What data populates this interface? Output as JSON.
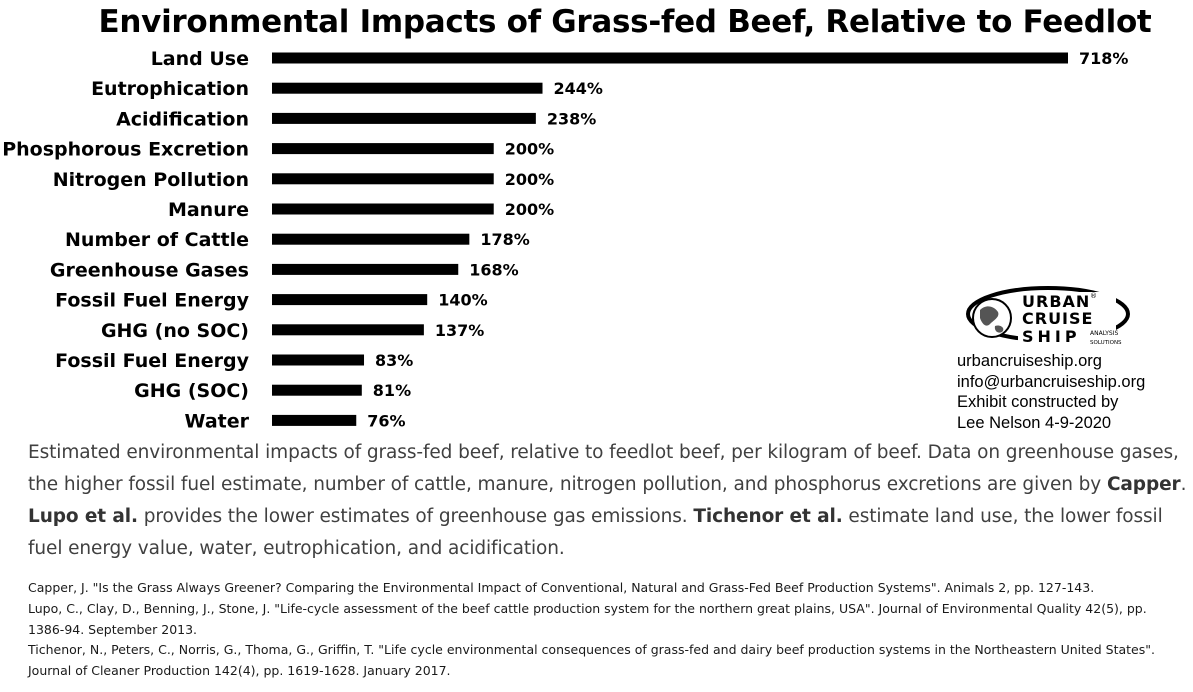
{
  "title": "Environmental Impacts of Grass-fed Beef, Relative to Feedlot",
  "chart_data": {
    "type": "bar",
    "orientation": "horizontal",
    "title": "Environmental Impacts of Grass-fed Beef, Relative to Feedlot",
    "categories": [
      "Land Use",
      "Eutrophication",
      "Acidification",
      "Phosphorous Excretion",
      "Nitrogen Pollution",
      "Manure",
      "Number of Cattle",
      "Greenhouse Gases",
      "Fossil Fuel Energy",
      "GHG (no SOC)",
      "Fossil Fuel Energy",
      "GHG (SOC)",
      "Water"
    ],
    "values": [
      718,
      244,
      238,
      200,
      200,
      200,
      178,
      168,
      140,
      137,
      83,
      81,
      76
    ],
    "value_labels": [
      "718%",
      "244%",
      "238%",
      "200%",
      "200%",
      "200%",
      "178%",
      "168%",
      "140%",
      "137%",
      "83%",
      "81%",
      "76%"
    ],
    "unit": "%",
    "bar_color": "#000000",
    "xlim": [
      0,
      718
    ],
    "grid": false,
    "legend": "none"
  },
  "logo": {
    "line1": "URBAN",
    "line2": "CRUISE",
    "line3": "SHIP",
    "sub1": "ANALYSIS",
    "sub2": "SOLUTIONS",
    "reg": "®"
  },
  "contact": {
    "website": "urbancruiseship.org",
    "email": "info@urbancruiseship.org",
    "credit_line1": "Exhibit constructed by",
    "credit_line2": "Lee Nelson 4-9-2020"
  },
  "caption": {
    "p1": "Estimated environmental impacts of grass-fed beef, relative to feedlot beef, per kilogram of beef. Data on greenhouse gases, the higher fossil fuel estimate, number of cattle, manure, nitrogen pollution, and phosphorus excretions are given by ",
    "s1": "Capper",
    "p2": ". ",
    "s2": "Lupo et al.",
    "p3": " provides the lower estimates of greenhouse gas emissions. ",
    "s3": "Tichenor et al.",
    "p4": " estimate land use, the lower fossil fuel energy value, water, eutrophication, and acidification."
  },
  "references": [
    "Capper, J. \"Is the Grass Always Greener? Comparing the Environmental Impact of Conventional, Natural and Grass-Fed Beef Production Systems\". Animals 2, pp. 127-143.",
    "Lupo, C., Clay, D., Benning, J., Stone, J. \"Life-cycle assessment of the beef cattle production system for the northern great plains, USA\". Journal of Environmental Quality 42(5), pp. 1386-94. September 2013.",
    "Tichenor, N., Peters, C., Norris, G., Thoma, G., Griffin, T. \"Life cycle environmental consequences of grass-fed and dairy beef production systems in the Northeastern United States\". Journal of Cleaner Production 142(4), pp. 1619-1628. January 2017."
  ]
}
